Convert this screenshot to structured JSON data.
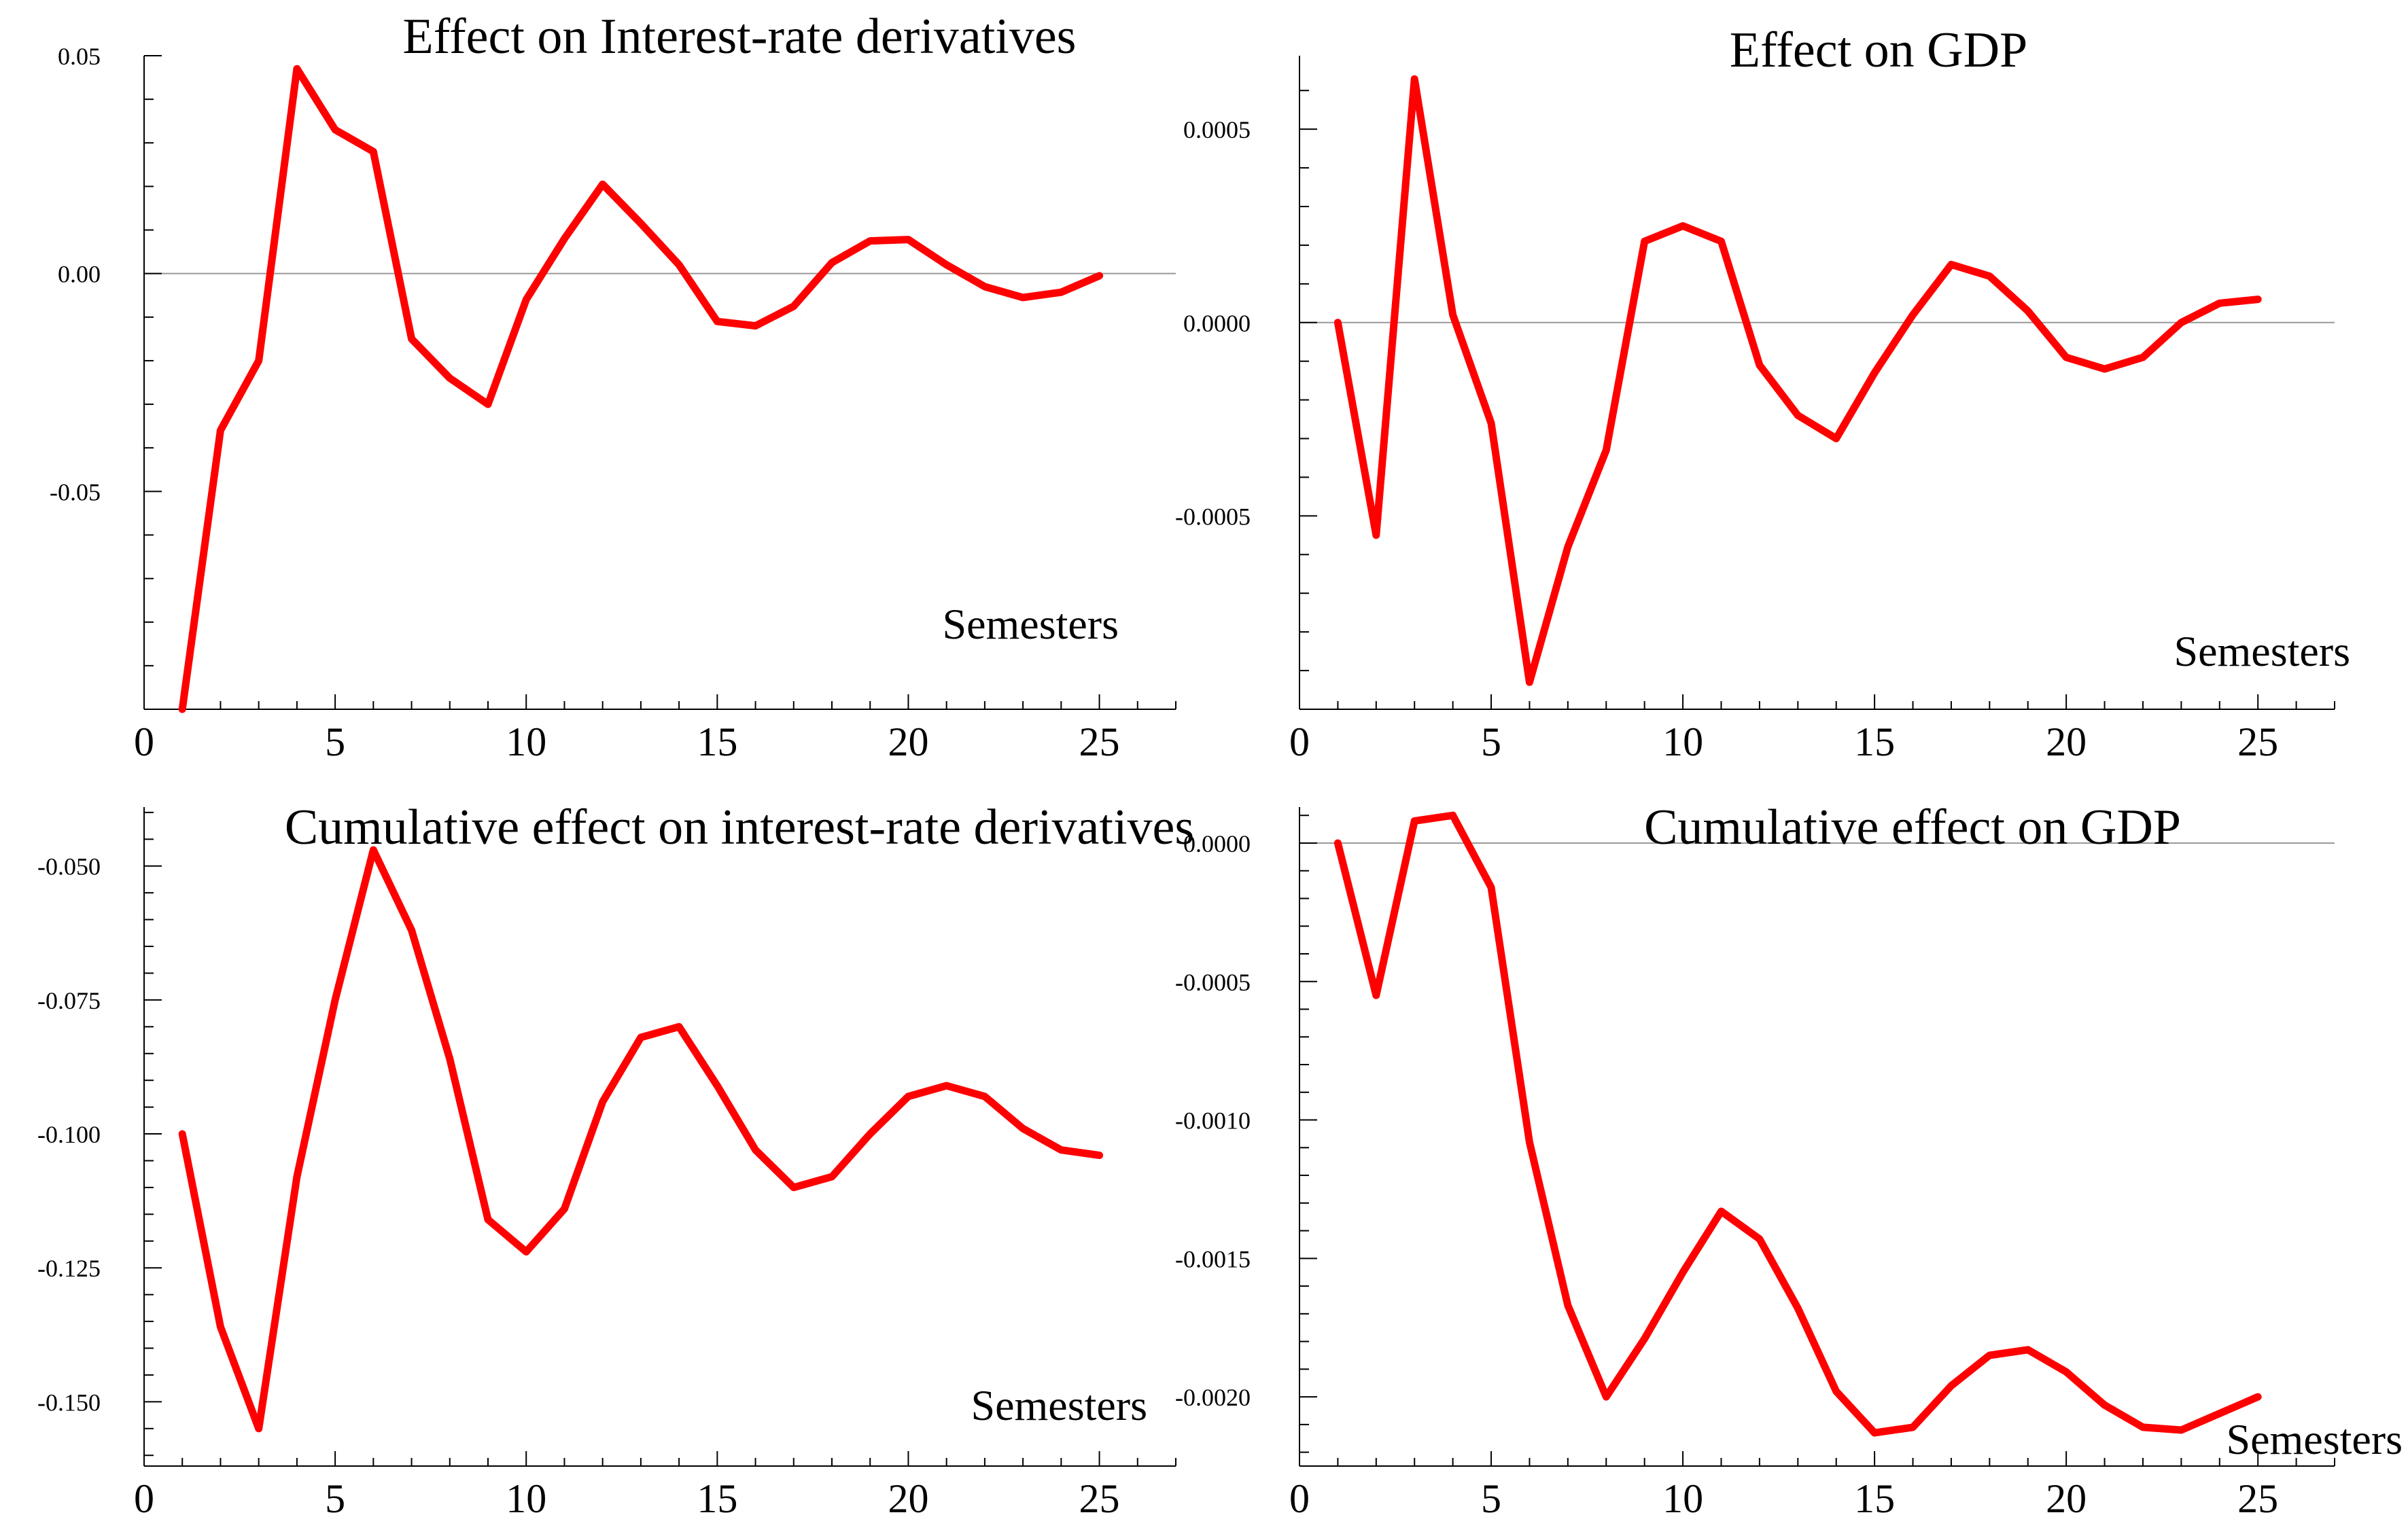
{
  "chart_data": [
    {
      "type": "line",
      "title": "Effect on  Interest-rate derivatives",
      "xlabel": "Semesters",
      "ylabel": "",
      "xlim": [
        0,
        27
      ],
      "ylim": [
        -0.1,
        0.05
      ],
      "xticks": [
        0,
        5,
        10,
        15,
        20,
        25
      ],
      "yticks": [
        0.05,
        0.0,
        -0.05
      ],
      "ytick_labels": [
        "0.05",
        "0.00",
        "-0.05"
      ],
      "zero_line": true,
      "grid": false,
      "line_color": "#ff0000",
      "series": [
        {
          "x": [
            1,
            2,
            3,
            4,
            5,
            6,
            7,
            8,
            9,
            10,
            11,
            12,
            13,
            14,
            15,
            16,
            17,
            18,
            19,
            20,
            21,
            22,
            23,
            24,
            25
          ],
          "values": [
            -0.1,
            -0.036,
            -0.02,
            0.047,
            0.033,
            0.028,
            -0.015,
            -0.024,
            -0.03,
            -0.006,
            0.008,
            0.0205,
            0.0115,
            0.002,
            -0.011,
            -0.012,
            -0.0075,
            0.0025,
            0.0075,
            0.0078,
            0.002,
            -0.003,
            -0.0055,
            -0.0043,
            -0.0005
          ]
        }
      ]
    },
    {
      "type": "line",
      "title": "Effect on  GDP",
      "xlabel": "Semesters",
      "ylabel": "",
      "xlim": [
        0,
        27
      ],
      "ylim": [
        -0.001,
        0.00069
      ],
      "xticks": [
        0,
        5,
        10,
        15,
        20,
        25
      ],
      "yticks": [
        0.0005,
        0.0,
        -0.0005
      ],
      "ytick_labels": [
        "0.0005",
        "0.0000",
        "-0.0005"
      ],
      "zero_line": true,
      "grid": false,
      "line_color": "#ff0000",
      "series": [
        {
          "x": [
            1,
            2,
            3,
            4,
            5,
            6,
            7,
            8,
            9,
            10,
            11,
            12,
            13,
            14,
            15,
            16,
            17,
            18,
            19,
            20,
            21,
            22,
            23,
            24,
            25
          ],
          "values": [
            0.0,
            -0.00055,
            0.00063,
            2e-05,
            -0.00026,
            -0.00093,
            -0.00058,
            -0.00033,
            0.00021,
            0.00025,
            0.00021,
            -0.00011,
            -0.00024,
            -0.0003,
            -0.00013,
            2e-05,
            0.00015,
            0.00012,
            3e-05,
            -9e-05,
            -0.00012,
            -9e-05,
            0.0,
            5e-05,
            6e-05
          ]
        }
      ]
    },
    {
      "type": "line",
      "title": "Cumulative effect on  interest-rate derivatives",
      "xlabel": "Semesters",
      "ylabel": "",
      "xlim": [
        0,
        27
      ],
      "ylim": [
        -0.162,
        -0.039
      ],
      "xticks": [
        0,
        5,
        10,
        15,
        20,
        25
      ],
      "yticks": [
        -0.05,
        -0.075,
        -0.1,
        -0.125,
        -0.15
      ],
      "ytick_labels": [
        "-0.050",
        "-0.075",
        "-0.100",
        "-0.125",
        "-0.150"
      ],
      "zero_line": false,
      "grid": false,
      "line_color": "#ff0000",
      "series": [
        {
          "x": [
            1,
            2,
            3,
            4,
            5,
            6,
            7,
            8,
            9,
            10,
            11,
            12,
            13,
            14,
            15,
            16,
            17,
            18,
            19,
            20,
            21,
            22,
            23,
            24,
            25
          ],
          "values": [
            -0.1,
            -0.136,
            -0.155,
            -0.108,
            -0.075,
            -0.047,
            -0.062,
            -0.086,
            -0.116,
            -0.122,
            -0.114,
            -0.094,
            -0.082,
            -0.08,
            -0.091,
            -0.103,
            -0.11,
            -0.108,
            -0.1,
            -0.093,
            -0.091,
            -0.093,
            -0.099,
            -0.103,
            -0.104
          ]
        }
      ]
    },
    {
      "type": "line",
      "title": "Cumulative effect on  GDP",
      "xlabel": "Semesters",
      "ylabel": "",
      "xlim": [
        0,
        27
      ],
      "ylim": [
        -0.00225,
        0.00013
      ],
      "xticks": [
        0,
        5,
        10,
        15,
        20,
        25
      ],
      "yticks": [
        0.0,
        -0.0005,
        -0.001,
        -0.0015,
        -0.002
      ],
      "ytick_labels": [
        "0.0000",
        "-0.0005",
        "-0.0010",
        "-0.0015",
        "-0.0020"
      ],
      "zero_line": true,
      "grid": false,
      "line_color": "#ff0000",
      "series": [
        {
          "x": [
            1,
            2,
            3,
            4,
            5,
            6,
            7,
            8,
            9,
            10,
            11,
            12,
            13,
            14,
            15,
            16,
            17,
            18,
            19,
            20,
            21,
            22,
            23,
            24,
            25
          ],
          "values": [
            0.0,
            -0.00055,
            8e-05,
            0.0001,
            -0.00016,
            -0.00108,
            -0.00167,
            -0.002,
            -0.00179,
            -0.00155,
            -0.00133,
            -0.00143,
            -0.00168,
            -0.00198,
            -0.00213,
            -0.00211,
            -0.00196,
            -0.00185,
            -0.00183,
            -0.00191,
            -0.00203,
            -0.00211,
            -0.00212,
            -0.00206,
            -0.002
          ]
        }
      ]
    }
  ]
}
